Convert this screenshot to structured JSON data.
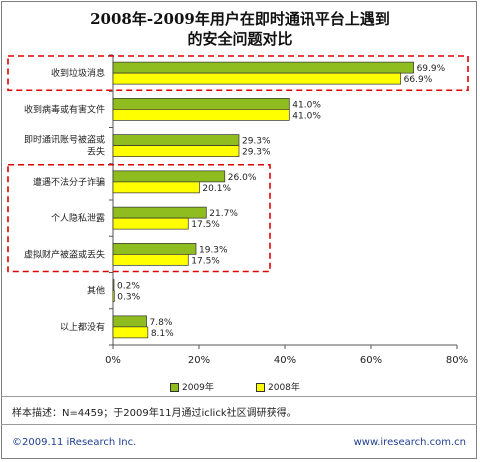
{
  "chart_data": {
    "type": "bar",
    "orientation": "horizontal",
    "title": "2008年-2009年用户在即时通讯平台上遇到的安全问题对比",
    "title_lines": [
      "2008年-2009年用户在即时通讯平台上遇到",
      "的安全问题对比"
    ],
    "categories": [
      [
        "收到垃圾消息"
      ],
      [
        "收到病毒或有害文件"
      ],
      [
        "即时通讯账号被盗或",
        "丢失"
      ],
      [
        "遭遇不法分子诈骗"
      ],
      [
        "个人隐私泄露"
      ],
      [
        "虚拟财产被盗或丢失"
      ],
      [
        "其他"
      ],
      [
        "以上都没有"
      ]
    ],
    "series": [
      {
        "name": "2009年",
        "color": "#8fbc1f",
        "values": [
          69.9,
          41.0,
          29.3,
          26.0,
          21.7,
          19.3,
          0.2,
          7.8
        ],
        "labels": [
          "69.9%",
          "41.0%",
          "29.3%",
          "26.0%",
          "21.7%",
          "19.3%",
          "0.2%",
          "7.8%"
        ]
      },
      {
        "name": "2008年",
        "color": "#ffff00",
        "values": [
          66.9,
          41.0,
          29.3,
          20.1,
          17.5,
          17.5,
          0.3,
          8.1
        ],
        "labels": [
          "66.9%",
          "41.0%",
          "29.3%",
          "20.1%",
          "17.5%",
          "17.5%",
          "0.3%",
          "8.1%"
        ]
      }
    ],
    "xlim": [
      0,
      80
    ],
    "xticks": [
      "0%",
      "20%",
      "40%",
      "60%",
      "80%"
    ],
    "grid": false,
    "legend_position": "bottom",
    "highlight_color": "#e00000"
  },
  "note": "样本描述：N=4459；于2009年11月通过iclick社区调研获得。",
  "footer": {
    "left": "©2009.11 iResearch Inc.",
    "right": "www.iresearch.com.cn"
  }
}
